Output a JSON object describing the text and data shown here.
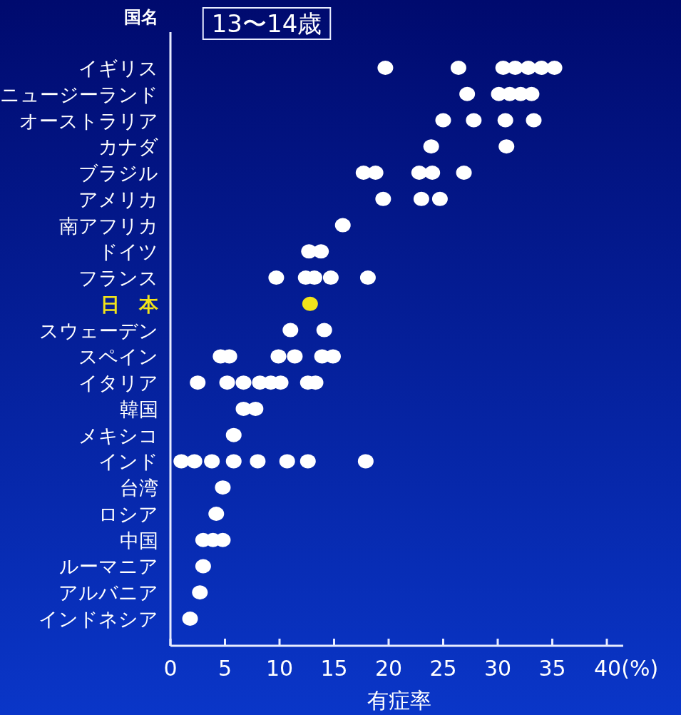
{
  "chart_data": {
    "type": "scatter",
    "orientation": "horizontal",
    "title": "13〜14歳",
    "ylabel": "国名",
    "xlabel": "有症率",
    "marker": "circle",
    "grid": false,
    "categories": [
      "イギリス",
      "ニュージーランド",
      "オーストラリア",
      "カナダ",
      "ブラジル",
      "アメリカ",
      "南アフリカ",
      "ドイツ",
      "フランス",
      "日　本",
      "スウェーデン",
      "スペイン",
      "イタリア",
      "韓国",
      "メキシコ",
      "インド",
      "台湾",
      "ロシア",
      "中国",
      "ルーマニア",
      "アルバニア",
      "インドネシア"
    ],
    "series": [
      {
        "color": "#ffffff",
        "x": [
          "イギリス",
          "イギリス",
          "イギリス",
          "イギリス",
          "イギリス",
          "イギリス",
          "イギリス",
          "ニュージーランド",
          "ニュージーランド",
          "ニュージーランド",
          "ニュージーランド",
          "ニュージーランド",
          "オーストラリア",
          "オーストラリア",
          "オーストラリア",
          "オーストラリア",
          "カナダ",
          "カナダ",
          "ブラジル",
          "ブラジル",
          "ブラジル",
          "ブラジル",
          "ブラジル",
          "アメリカ",
          "アメリカ",
          "アメリカ",
          "南アフリカ",
          "ドイツ",
          "ドイツ",
          "フランス",
          "フランス",
          "フランス",
          "フランス",
          "フランス",
          "スウェーデン",
          "スウェーデン",
          "スペイン",
          "スペイン",
          "スペイン",
          "スペイン",
          "スペイン",
          "スペイン",
          "イタリア",
          "イタリア",
          "イタリア",
          "イタリア",
          "イタリア",
          "イタリア",
          "イタリア",
          "イタリア",
          "韓国",
          "韓国",
          "メキシコ",
          "インド",
          "インド",
          "インド",
          "インド",
          "インド",
          "インド",
          "インド",
          "インド",
          "台湾",
          "ロシア",
          "中国",
          "中国",
          "中国",
          "ルーマニア",
          "アルバニア",
          "インドネシア"
        ],
        "values": [
          19.7,
          26.4,
          30.5,
          31.6,
          32.8,
          34.0,
          35.2,
          27.2,
          30.1,
          31.1,
          32.1,
          33.1,
          25.0,
          27.8,
          30.7,
          33.3,
          23.9,
          30.8,
          17.7,
          18.8,
          22.8,
          24.0,
          26.9,
          19.5,
          23.0,
          24.7,
          15.8,
          12.7,
          13.8,
          9.7,
          12.4,
          13.2,
          14.7,
          18.1,
          11.0,
          14.1,
          4.6,
          5.4,
          9.9,
          11.4,
          13.9,
          14.9,
          2.5,
          5.2,
          6.7,
          8.2,
          9.2,
          10.1,
          12.6,
          13.3,
          6.7,
          7.8,
          5.8,
          1.0,
          2.2,
          3.8,
          5.8,
          8.0,
          10.7,
          12.6,
          17.9,
          4.8,
          4.2,
          3.0,
          3.9,
          4.8,
          3.0,
          2.7,
          1.8
        ]
      },
      {
        "color": "#f2e31a",
        "x": [
          "日　本"
        ],
        "values": [
          12.8
        ]
      }
    ],
    "xlim": [
      0,
      41.5
    ],
    "xticks": [
      0,
      5,
      10,
      15,
      20,
      25,
      30,
      35,
      {
        "value": 40,
        "label": "40(%)"
      }
    ]
  }
}
